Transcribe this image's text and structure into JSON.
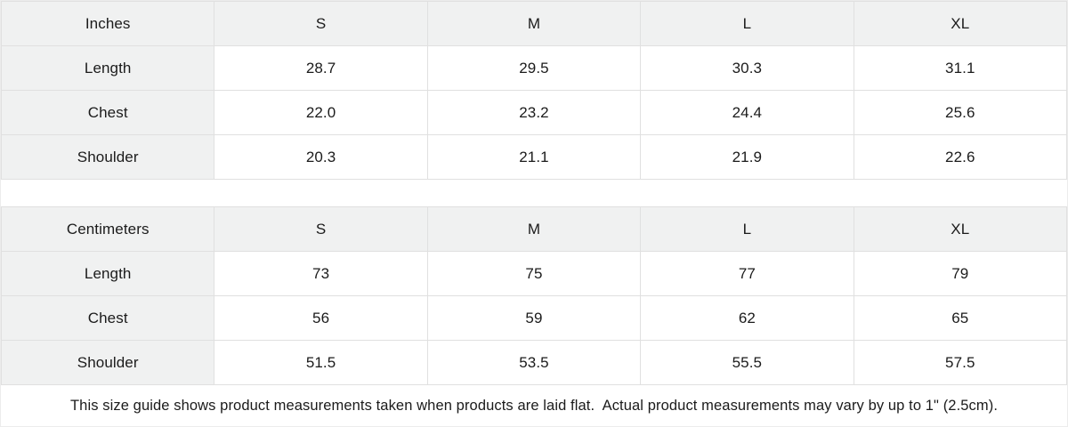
{
  "tables": [
    {
      "unit_label": "Inches",
      "sizes": [
        "S",
        "M",
        "L",
        "XL"
      ],
      "rows": [
        {
          "label": "Length",
          "values": [
            "28.7",
            "29.5",
            "30.3",
            "31.1"
          ]
        },
        {
          "label": "Chest",
          "values": [
            "22.0",
            "23.2",
            "24.4",
            "25.6"
          ]
        },
        {
          "label": "Shoulder",
          "values": [
            "20.3",
            "21.1",
            "21.9",
            "22.6"
          ]
        }
      ]
    },
    {
      "unit_label": "Centimeters",
      "sizes": [
        "S",
        "M",
        "L",
        "XL"
      ],
      "rows": [
        {
          "label": "Length",
          "values": [
            "73",
            "75",
            "77",
            "79"
          ]
        },
        {
          "label": "Chest",
          "values": [
            "56",
            "59",
            "62",
            "65"
          ]
        },
        {
          "label": "Shoulder",
          "values": [
            "51.5",
            "53.5",
            "55.5",
            "57.5"
          ]
        }
      ]
    }
  ],
  "footer": {
    "note": "This size guide shows product measurements taken when products are laid flat.  Actual product measurements may vary by up to 1\" (2.5cm)."
  },
  "colors": {
    "header_bg": "#f0f1f1",
    "cell_bg": "#ffffff",
    "border": "#e0e0e0",
    "text": "#1b1b1b"
  }
}
